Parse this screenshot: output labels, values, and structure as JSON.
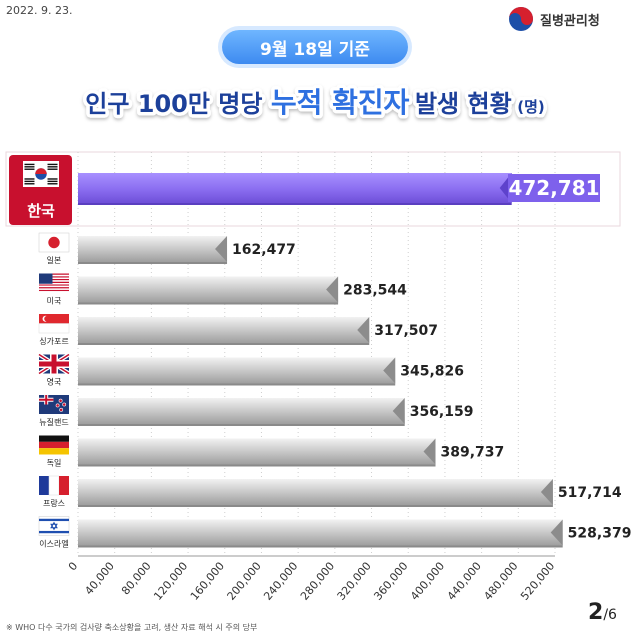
{
  "header": {
    "date": "2022. 9. 23.",
    "logo_text": "질병관리청"
  },
  "badge": "9월 18일 기준",
  "title": {
    "part1": "인구 100만 명당 ",
    "part2": "누적 확진자",
    "part3": " 발생 현황",
    "unit": "(명)"
  },
  "colors": {
    "korea_bar": "#8a6df0",
    "other_bar": "#c9c9c9",
    "title_blue": "#2f6fe0",
    "korea_label_bg": "#c8102e"
  },
  "chart_data": {
    "type": "bar",
    "orientation": "horizontal",
    "categories": [
      "한국",
      "일본",
      "미국",
      "싱가포르",
      "영국",
      "뉴질랜드",
      "독일",
      "프랑스",
      "이스라엘"
    ],
    "values": [
      472781,
      162477,
      283544,
      317507,
      345826,
      356159,
      389737,
      517714,
      528379
    ],
    "value_labels": [
      "472,781",
      "162,477",
      "283,544",
      "317,507",
      "345,826",
      "356,159",
      "389,737",
      "517,714",
      "528,379"
    ],
    "xlim": [
      0,
      520000
    ],
    "xticks": [
      "0",
      "40,000",
      "80,000",
      "120,000",
      "160,000",
      "200,000",
      "240,000",
      "280,000",
      "320,000",
      "360,000",
      "400,000",
      "440,000",
      "480,000",
      "520,000"
    ],
    "flag_icons": [
      "korea-flag-icon",
      "japan-flag-icon",
      "usa-flag-icon",
      "singapore-flag-icon",
      "uk-flag-icon",
      "newzealand-flag-icon",
      "germany-flag-icon",
      "france-flag-icon",
      "israel-flag-icon"
    ],
    "grid": true
  },
  "footnote": "※ WHO 다수 국가의 검사량 축소상황을 고려, 생산 자료 해석 시 주의 당부",
  "page": {
    "current": "2",
    "total": "/6"
  }
}
